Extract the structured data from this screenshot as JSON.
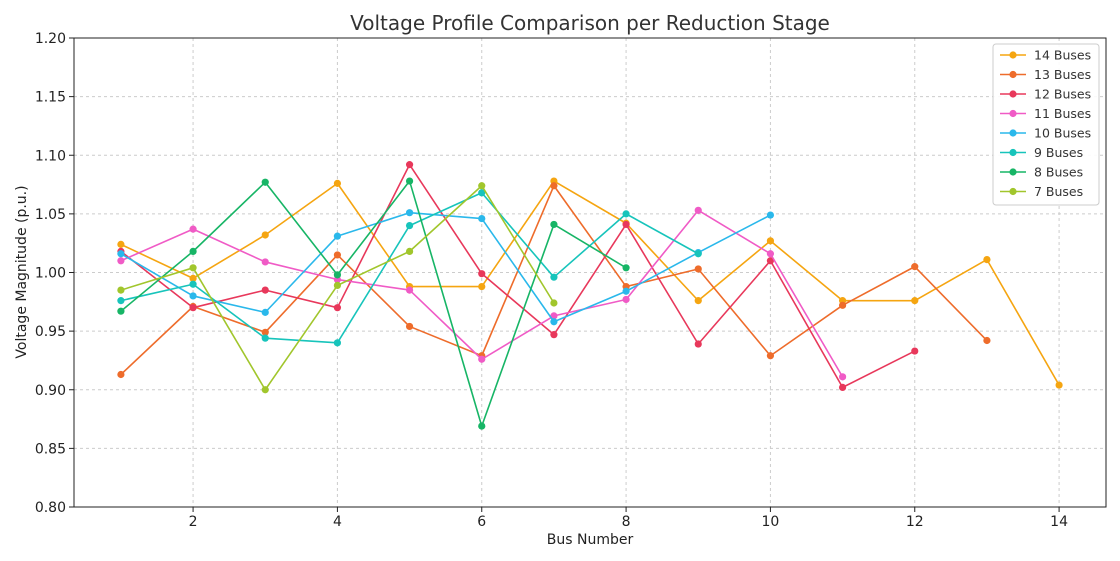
{
  "chart_data": {
    "type": "line",
    "title": "Voltage Profile Comparison per Reduction Stage",
    "xlabel": "Bus Number",
    "ylabel": "Voltage Magnitude (p.u.)",
    "xlim": [
      0.35,
      14.65
    ],
    "ylim": [
      0.8,
      1.2
    ],
    "xticks": [
      2,
      4,
      6,
      8,
      10,
      12,
      14
    ],
    "yticks": [
      0.8,
      0.85,
      0.9,
      0.95,
      1.0,
      1.05,
      1.1,
      1.15,
      1.2
    ],
    "grid": true,
    "legend_position": "top-right",
    "series": [
      {
        "name": "14 Buses",
        "color": "#f5a511",
        "x": [
          1,
          2,
          3,
          4,
          5,
          6,
          7,
          8,
          9,
          10,
          11,
          12,
          13,
          14
        ],
        "values": [
          1.024,
          0.995,
          1.032,
          1.076,
          0.988,
          0.988,
          1.078,
          1.042,
          0.976,
          1.027,
          0.976,
          0.976,
          1.011,
          0.904
        ]
      },
      {
        "name": "13 Buses",
        "color": "#ee6c2b",
        "x": [
          1,
          2,
          3,
          4,
          5,
          6,
          7,
          8,
          9,
          10,
          11,
          12,
          13
        ],
        "values": [
          0.913,
          0.971,
          0.949,
          1.015,
          0.954,
          0.929,
          1.074,
          0.988,
          1.003,
          0.929,
          0.972,
          1.005,
          0.942
        ]
      },
      {
        "name": "12 Buses",
        "color": "#e8385b",
        "x": [
          1,
          2,
          3,
          4,
          5,
          6,
          7,
          8,
          9,
          10,
          11,
          12
        ],
        "values": [
          1.018,
          0.97,
          0.985,
          0.97,
          1.092,
          0.999,
          0.947,
          1.041,
          0.939,
          1.01,
          0.902,
          0.933
        ]
      },
      {
        "name": "11 Buses",
        "color": "#f05bc6",
        "x": [
          1,
          2,
          3,
          4,
          5,
          6,
          7,
          8,
          9,
          10,
          11
        ],
        "values": [
          1.01,
          1.037,
          1.009,
          0.994,
          0.985,
          0.926,
          0.963,
          0.977,
          1.053,
          1.016,
          0.911
        ]
      },
      {
        "name": "10 Buses",
        "color": "#2ab8eb",
        "x": [
          1,
          2,
          3,
          4,
          5,
          6,
          7,
          8,
          9,
          10
        ],
        "values": [
          1.016,
          0.98,
          0.966,
          1.031,
          1.051,
          1.046,
          0.958,
          0.984,
          1.017,
          1.049
        ]
      },
      {
        "name": "9 Buses",
        "color": "#17c4bb",
        "x": [
          1,
          2,
          3,
          4,
          5,
          6,
          7,
          8,
          9
        ],
        "values": [
          0.976,
          0.99,
          0.944,
          0.94,
          1.04,
          1.068,
          0.996,
          1.05,
          1.016
        ]
      },
      {
        "name": "8 Buses",
        "color": "#17b566",
        "x": [
          1,
          2,
          3,
          4,
          5,
          6,
          7,
          8
        ],
        "values": [
          0.967,
          1.018,
          1.077,
          0.998,
          1.078,
          0.869,
          1.041,
          1.004
        ]
      },
      {
        "name": "7 Buses",
        "color": "#a1c62c",
        "x": [
          1,
          2,
          3,
          4,
          5,
          6,
          7
        ],
        "values": [
          0.985,
          1.004,
          0.9,
          0.989,
          1.018,
          1.074,
          0.974
        ]
      }
    ]
  }
}
